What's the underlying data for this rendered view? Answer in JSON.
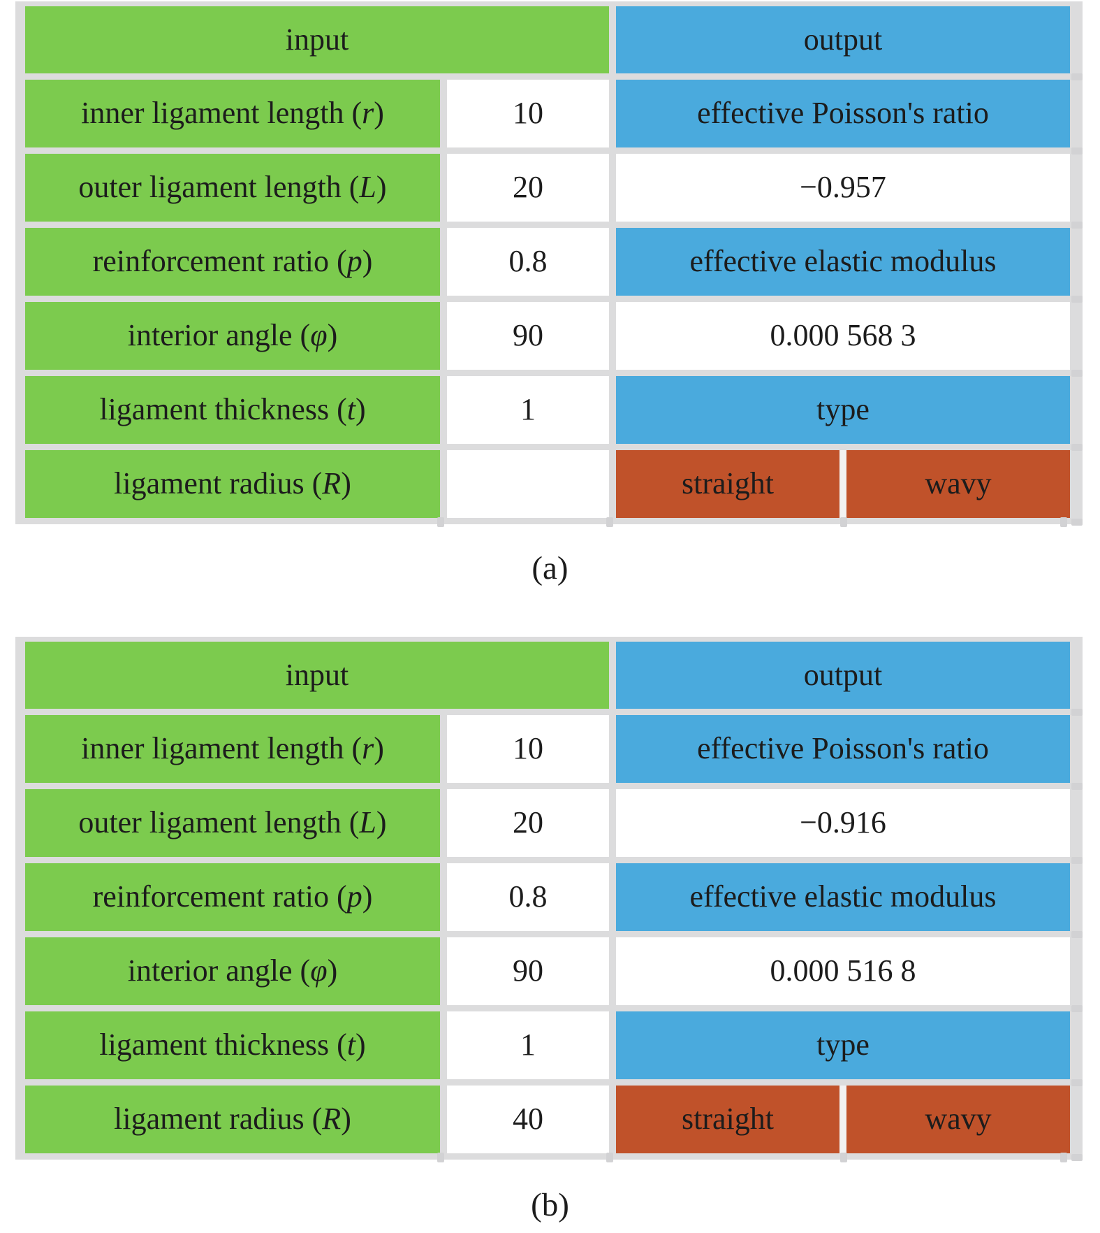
{
  "colors": {
    "green": "#7ccb4e",
    "blue": "#4aaadd",
    "orange": "#c0522a",
    "grid": "#dcdcdd",
    "text": "#1c1c1c"
  },
  "tables": [
    {
      "caption": "(a)",
      "headers": {
        "input": "input",
        "output": "output"
      },
      "input_rows": [
        {
          "label": "inner ligament length (r)",
          "value": "10"
        },
        {
          "label": "outer ligament length (L)",
          "value": "20"
        },
        {
          "label": "reinforcement ratio (p)",
          "value": "0.8"
        },
        {
          "label": "interior angle (φ)",
          "value": "90"
        },
        {
          "label": "ligament thickness (t)",
          "value": "1"
        },
        {
          "label": "ligament radius (R)",
          "value": ""
        }
      ],
      "output_cells": {
        "poisson_label": "effective Poisson's ratio",
        "poisson_value": "−0.957",
        "modulus_label": "effective elastic modulus",
        "modulus_value": "0.000 568 3",
        "type_label": "type",
        "type_options": {
          "straight": "straight",
          "wavy": "wavy"
        }
      }
    },
    {
      "caption": "(b)",
      "headers": {
        "input": "input",
        "output": "output"
      },
      "input_rows": [
        {
          "label": "inner ligament length (r)",
          "value": "10"
        },
        {
          "label": "outer ligament length (L)",
          "value": "20"
        },
        {
          "label": "reinforcement ratio (p)",
          "value": "0.8"
        },
        {
          "label": "interior angle (φ)",
          "value": "90"
        },
        {
          "label": "ligament thickness (t)",
          "value": "1"
        },
        {
          "label": "ligament radius (R)",
          "value": "40"
        }
      ],
      "output_cells": {
        "poisson_label": "effective Poisson's ratio",
        "poisson_value": "−0.916",
        "modulus_label": "effective elastic modulus",
        "modulus_value": "0.000 516 8",
        "type_label": "type",
        "type_options": {
          "straight": "straight",
          "wavy": "wavy"
        }
      }
    }
  ]
}
